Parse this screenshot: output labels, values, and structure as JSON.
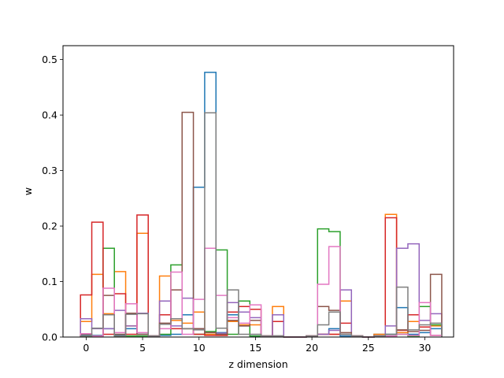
{
  "chart_data": {
    "type": "step",
    "title": "",
    "xlabel": "z dimension",
    "ylabel": "w",
    "xlim": [
      -2.05,
      32.55
    ],
    "ylim": [
      0,
      0.525
    ],
    "xticks": [
      0,
      5,
      10,
      15,
      20,
      25,
      30
    ],
    "yticks": [
      0.0,
      0.1,
      0.2,
      0.3,
      0.4,
      0.5
    ],
    "yticklabels": [
      "0.0",
      "0.1",
      "0.2",
      "0.3",
      "0.4",
      "0.5"
    ],
    "grid": false,
    "legend": "none",
    "series": [
      {
        "color": "#1f77b4",
        "values": [
          0.003,
          0.003,
          0.015,
          0.003,
          0.015,
          0.005,
          0.002,
          0.003,
          0.005,
          0.04,
          0.27,
          0.477,
          0.008,
          0.04,
          0.02,
          0.002,
          0.002,
          0.002,
          0.0,
          0.0,
          0.002,
          0.005,
          0.015,
          0.002,
          0.002,
          0.0,
          0.005,
          0.005,
          0.053,
          0.005,
          0.008,
          0.015
        ]
      },
      {
        "color": "#ff7f0e",
        "values": [
          0.028,
          0.113,
          0.042,
          0.118,
          0.02,
          0.187,
          0.002,
          0.11,
          0.03,
          0.025,
          0.045,
          0.005,
          0.003,
          0.028,
          0.022,
          0.022,
          0.002,
          0.055,
          0.0,
          0.0,
          0.002,
          0.005,
          0.005,
          0.065,
          0.002,
          0.0,
          0.005,
          0.221,
          0.008,
          0.028,
          0.018,
          0.02
        ]
      },
      {
        "color": "#2ca02c",
        "values": [
          0.002,
          0.002,
          0.16,
          0.002,
          0.002,
          0.002,
          0.002,
          0.005,
          0.13,
          0.015,
          0.005,
          0.01,
          0.157,
          0.005,
          0.065,
          0.002,
          0.002,
          0.002,
          0.0,
          0.0,
          0.002,
          0.195,
          0.19,
          0.005,
          0.002,
          0.0,
          0.002,
          0.002,
          0.005,
          0.002,
          0.055,
          0.022
        ]
      },
      {
        "color": "#d62728",
        "values": [
          0.076,
          0.207,
          0.005,
          0.078,
          0.005,
          0.22,
          0.002,
          0.04,
          0.015,
          0.015,
          0.005,
          0.003,
          0.003,
          0.045,
          0.055,
          0.05,
          0.002,
          0.028,
          0.0,
          0.0,
          0.002,
          0.005,
          0.005,
          0.025,
          0.002,
          0.0,
          0.002,
          0.215,
          0.012,
          0.04,
          0.018,
          0.003
        ]
      },
      {
        "color": "#9467bd",
        "values": [
          0.033,
          0.015,
          0.015,
          0.048,
          0.02,
          0.043,
          0.002,
          0.065,
          0.02,
          0.07,
          0.015,
          0.008,
          0.007,
          0.062,
          0.045,
          0.035,
          0.002,
          0.04,
          0.0,
          0.0,
          0.002,
          0.005,
          0.012,
          0.085,
          0.002,
          0.0,
          0.002,
          0.02,
          0.16,
          0.168,
          0.03,
          0.042
        ]
      },
      {
        "color": "#8c564b",
        "values": [
          0.005,
          0.002,
          0.075,
          0.005,
          0.043,
          0.005,
          0.002,
          0.025,
          0.085,
          0.405,
          0.015,
          0.008,
          0.005,
          0.03,
          0.02,
          0.03,
          0.002,
          0.002,
          0.0,
          0.0,
          0.002,
          0.055,
          0.048,
          0.008,
          0.002,
          0.0,
          0.002,
          0.002,
          0.013,
          0.01,
          0.012,
          0.113
        ]
      },
      {
        "color": "#e377c2",
        "values": [
          0.006,
          0.002,
          0.088,
          0.008,
          0.06,
          0.008,
          0.002,
          0.015,
          0.117,
          0.005,
          0.068,
          0.16,
          0.075,
          0.035,
          0.025,
          0.058,
          0.002,
          0.002,
          0.0,
          0.0,
          0.002,
          0.095,
          0.163,
          0.005,
          0.002,
          0.0,
          0.002,
          0.002,
          0.005,
          0.003,
          0.062,
          0.003
        ]
      },
      {
        "color": "#7f7f7f",
        "values": [
          0.002,
          0.016,
          0.04,
          0.002,
          0.041,
          0.042,
          0.002,
          0.023,
          0.033,
          0.015,
          0.013,
          0.404,
          0.016,
          0.085,
          0.005,
          0.005,
          0.002,
          0.002,
          0.0,
          0.0,
          0.002,
          0.022,
          0.045,
          0.005,
          0.002,
          0.0,
          0.002,
          0.005,
          0.09,
          0.013,
          0.022,
          0.025
        ]
      }
    ]
  }
}
